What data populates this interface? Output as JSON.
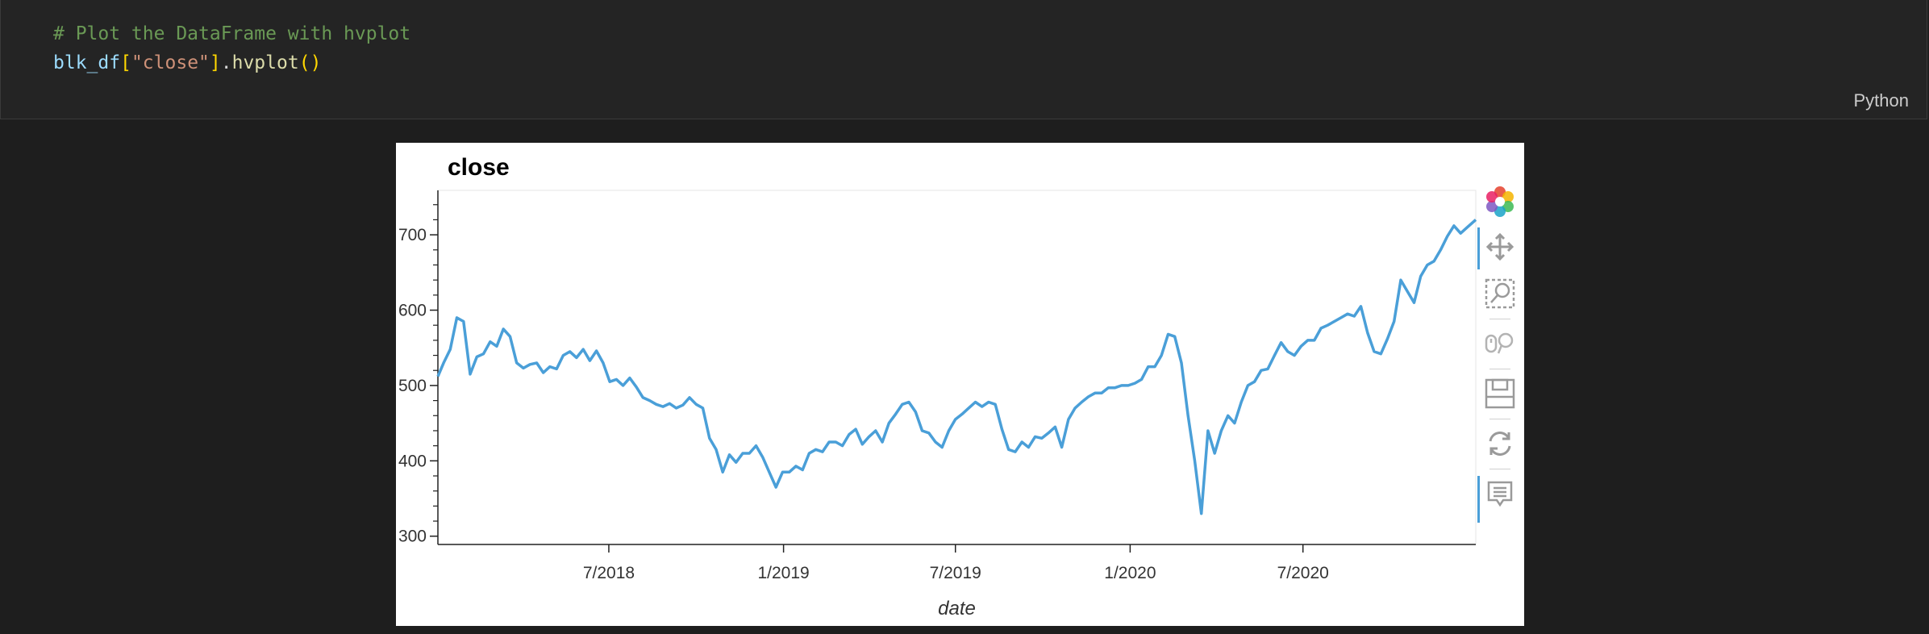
{
  "cell": {
    "comment": "# Plot the DataFrame with hvplot",
    "code_tokens": {
      "var": "blk_df",
      "open_bracket": "[",
      "key": "\"close\"",
      "close_bracket": "]",
      "dot": ".",
      "method": "hvplot",
      "paren_open": "(",
      "paren_close": ")"
    },
    "language": "Python"
  },
  "toolbar": {
    "icons": [
      "bokeh-logo-icon",
      "pan-icon",
      "box-zoom-icon",
      "wheel-zoom-icon",
      "save-icon",
      "reset-icon",
      "hover-icon"
    ]
  },
  "colors": {
    "line": "#4a9fd8",
    "background": "#1e1e1e",
    "cell_background": "#242424"
  },
  "chart_data": {
    "type": "line",
    "title": "close",
    "xlabel": "date",
    "ylabel": "",
    "ylim": [
      289,
      759
    ],
    "xlim": [
      "2018-01-02",
      "2020-12-30"
    ],
    "yticks": [
      300,
      400,
      500,
      600,
      700
    ],
    "xticks": [
      "2018-07-01",
      "2019-01-01",
      "2019-07-01",
      "2020-01-01",
      "2020-07-01"
    ],
    "xtick_labels": [
      "7/2018",
      "1/2019",
      "7/2019",
      "1/2020",
      "7/2020"
    ],
    "grid": false,
    "series": [
      {
        "points": [
          [
            "2018-01-02",
            512
          ],
          [
            "2018-01-08",
            530
          ],
          [
            "2018-01-15",
            548
          ],
          [
            "2018-01-22",
            590
          ],
          [
            "2018-01-29",
            585
          ],
          [
            "2018-02-05",
            515
          ],
          [
            "2018-02-12",
            538
          ],
          [
            "2018-02-19",
            542
          ],
          [
            "2018-02-26",
            558
          ],
          [
            "2018-03-05",
            552
          ],
          [
            "2018-03-12",
            575
          ],
          [
            "2018-03-19",
            565
          ],
          [
            "2018-03-26",
            530
          ],
          [
            "2018-04-02",
            523
          ],
          [
            "2018-04-09",
            528
          ],
          [
            "2018-04-16",
            530
          ],
          [
            "2018-04-23",
            517
          ],
          [
            "2018-04-30",
            525
          ],
          [
            "2018-05-07",
            522
          ],
          [
            "2018-05-14",
            540
          ],
          [
            "2018-05-21",
            545
          ],
          [
            "2018-05-28",
            537
          ],
          [
            "2018-06-04",
            548
          ],
          [
            "2018-06-11",
            533
          ],
          [
            "2018-06-18",
            546
          ],
          [
            "2018-06-25",
            530
          ],
          [
            "2018-07-02",
            505
          ],
          [
            "2018-07-09",
            508
          ],
          [
            "2018-07-16",
            500
          ],
          [
            "2018-07-23",
            510
          ],
          [
            "2018-07-30",
            498
          ],
          [
            "2018-08-06",
            484
          ],
          [
            "2018-08-13",
            480
          ],
          [
            "2018-08-20",
            475
          ],
          [
            "2018-08-27",
            472
          ],
          [
            "2018-09-03",
            476
          ],
          [
            "2018-09-10",
            470
          ],
          [
            "2018-09-17",
            474
          ],
          [
            "2018-09-24",
            484
          ],
          [
            "2018-10-01",
            475
          ],
          [
            "2018-10-08",
            470
          ],
          [
            "2018-10-15",
            430
          ],
          [
            "2018-10-22",
            415
          ],
          [
            "2018-10-29",
            385
          ],
          [
            "2018-11-05",
            408
          ],
          [
            "2018-11-12",
            398
          ],
          [
            "2018-11-19",
            410
          ],
          [
            "2018-11-26",
            410
          ],
          [
            "2018-12-03",
            420
          ],
          [
            "2018-12-10",
            405
          ],
          [
            "2018-12-17",
            385
          ],
          [
            "2018-12-24",
            365
          ],
          [
            "2018-12-31",
            385
          ],
          [
            "2019-01-07",
            385
          ],
          [
            "2019-01-14",
            393
          ],
          [
            "2019-01-21",
            388
          ],
          [
            "2019-01-28",
            410
          ],
          [
            "2019-02-04",
            415
          ],
          [
            "2019-02-11",
            412
          ],
          [
            "2019-02-18",
            425
          ],
          [
            "2019-02-25",
            425
          ],
          [
            "2019-03-04",
            420
          ],
          [
            "2019-03-11",
            435
          ],
          [
            "2019-03-18",
            442
          ],
          [
            "2019-03-25",
            422
          ],
          [
            "2019-04-01",
            432
          ],
          [
            "2019-04-08",
            440
          ],
          [
            "2019-04-15",
            425
          ],
          [
            "2019-04-22",
            450
          ],
          [
            "2019-04-29",
            462
          ],
          [
            "2019-05-06",
            475
          ],
          [
            "2019-05-13",
            478
          ],
          [
            "2019-05-20",
            465
          ],
          [
            "2019-05-27",
            440
          ],
          [
            "2019-06-03",
            437
          ],
          [
            "2019-06-10",
            425
          ],
          [
            "2019-06-17",
            418
          ],
          [
            "2019-06-24",
            440
          ],
          [
            "2019-07-01",
            455
          ],
          [
            "2019-07-08",
            462
          ],
          [
            "2019-07-15",
            470
          ],
          [
            "2019-07-22",
            478
          ],
          [
            "2019-07-29",
            472
          ],
          [
            "2019-08-05",
            478
          ],
          [
            "2019-08-12",
            475
          ],
          [
            "2019-08-19",
            442
          ],
          [
            "2019-08-26",
            415
          ],
          [
            "2019-09-02",
            412
          ],
          [
            "2019-09-09",
            425
          ],
          [
            "2019-09-16",
            418
          ],
          [
            "2019-09-23",
            432
          ],
          [
            "2019-09-30",
            430
          ],
          [
            "2019-10-07",
            437
          ],
          [
            "2019-10-14",
            445
          ],
          [
            "2019-10-21",
            418
          ],
          [
            "2019-10-28",
            455
          ],
          [
            "2019-11-04",
            470
          ],
          [
            "2019-11-11",
            478
          ],
          [
            "2019-11-18",
            485
          ],
          [
            "2019-11-25",
            490
          ],
          [
            "2019-12-02",
            490
          ],
          [
            "2019-12-09",
            497
          ],
          [
            "2019-12-16",
            497
          ],
          [
            "2019-12-23",
            500
          ],
          [
            "2019-12-30",
            500
          ],
          [
            "2020-01-06",
            503
          ],
          [
            "2020-01-13",
            508
          ],
          [
            "2020-01-20",
            525
          ],
          [
            "2020-01-27",
            525
          ],
          [
            "2020-02-03",
            540
          ],
          [
            "2020-02-10",
            568
          ],
          [
            "2020-02-17",
            565
          ],
          [
            "2020-02-24",
            530
          ],
          [
            "2020-03-02",
            460
          ],
          [
            "2020-03-09",
            400
          ],
          [
            "2020-03-16",
            330
          ],
          [
            "2020-03-23",
            440
          ],
          [
            "2020-03-30",
            410
          ],
          [
            "2020-04-06",
            440
          ],
          [
            "2020-04-13",
            460
          ],
          [
            "2020-04-20",
            450
          ],
          [
            "2020-04-27",
            478
          ],
          [
            "2020-05-04",
            500
          ],
          [
            "2020-05-11",
            505
          ],
          [
            "2020-05-18",
            520
          ],
          [
            "2020-05-25",
            522
          ],
          [
            "2020-06-01",
            540
          ],
          [
            "2020-06-08",
            557
          ],
          [
            "2020-06-15",
            545
          ],
          [
            "2020-06-22",
            540
          ],
          [
            "2020-06-29",
            552
          ],
          [
            "2020-07-06",
            560
          ],
          [
            "2020-07-13",
            560
          ],
          [
            "2020-07-20",
            576
          ],
          [
            "2020-07-27",
            580
          ],
          [
            "2020-08-03",
            585
          ],
          [
            "2020-08-10",
            590
          ],
          [
            "2020-08-17",
            595
          ],
          [
            "2020-08-24",
            592
          ],
          [
            "2020-08-31",
            605
          ],
          [
            "2020-09-07",
            570
          ],
          [
            "2020-09-14",
            545
          ],
          [
            "2020-09-21",
            542
          ],
          [
            "2020-09-28",
            562
          ],
          [
            "2020-10-05",
            585
          ],
          [
            "2020-10-12",
            640
          ],
          [
            "2020-10-19",
            625
          ],
          [
            "2020-10-26",
            610
          ],
          [
            "2020-11-02",
            645
          ],
          [
            "2020-11-09",
            660
          ],
          [
            "2020-11-16",
            665
          ],
          [
            "2020-11-23",
            680
          ],
          [
            "2020-11-30",
            698
          ],
          [
            "2020-12-07",
            712
          ],
          [
            "2020-12-14",
            702
          ],
          [
            "2020-12-21",
            710
          ],
          [
            "2020-12-30",
            720
          ]
        ]
      }
    ]
  }
}
